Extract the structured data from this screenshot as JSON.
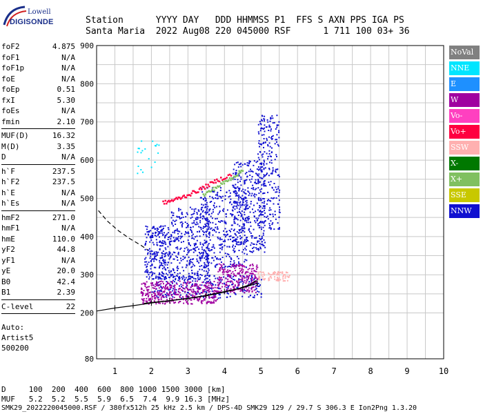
{
  "logo": {
    "top": "Lowell",
    "main": "DIGISONDE"
  },
  "header": {
    "line1": "Station      YYYY DAY   DDD HHMMSS P1  FFS S AXN PPS IGA PS",
    "line2": "Santa Maria  2022 Aug08 220 045000 RSF      1 711 100 03+ 36"
  },
  "params": {
    "group1": [
      {
        "k": "foF2",
        "v": "4.875"
      },
      {
        "k": "foF1",
        "v": "N/A"
      },
      {
        "k": "foF1p",
        "v": "N/A"
      },
      {
        "k": "foE",
        "v": "N/A"
      },
      {
        "k": "foEp",
        "v": "0.51"
      },
      {
        "k": "fxI",
        "v": "5.30"
      },
      {
        "k": "foEs",
        "v": "N/A"
      },
      {
        "k": "fmin",
        "v": "2.10"
      }
    ],
    "group2": [
      {
        "k": "MUF(D)",
        "v": "16.32"
      },
      {
        "k": "M(D)",
        "v": "3.35"
      },
      {
        "k": "D",
        "v": "N/A"
      }
    ],
    "group3": [
      {
        "k": "h`F",
        "v": "237.5"
      },
      {
        "k": "h`F2",
        "v": "237.5"
      },
      {
        "k": "h`E",
        "v": "N/A"
      },
      {
        "k": "h`Es",
        "v": "N/A"
      }
    ],
    "group4": [
      {
        "k": "hmF2",
        "v": "271.0"
      },
      {
        "k": "hmF1",
        "v": "N/A"
      },
      {
        "k": "hmE",
        "v": "110.0"
      },
      {
        "k": "yF2",
        "v": "44.8"
      },
      {
        "k": "yF1",
        "v": "N/A"
      },
      {
        "k": "yE",
        "v": "20.0"
      },
      {
        "k": "B0",
        "v": "42.4"
      },
      {
        "k": "B1",
        "v": "2.39"
      }
    ],
    "group5": [
      {
        "k": "C-level",
        "v": "22"
      }
    ],
    "footer": [
      "Auto:",
      "Artist5",
      "500200"
    ]
  },
  "legend": [
    {
      "label": "NoVal",
      "color": "#808080"
    },
    {
      "label": "NNE",
      "color": "#00e5ff"
    },
    {
      "label": "E",
      "color": "#1e90ff"
    },
    {
      "label": "W",
      "color": "#a000a0"
    },
    {
      "label": "Vo-",
      "color": "#ff40c0"
    },
    {
      "label": "Vo+",
      "color": "#ff0040"
    },
    {
      "label": "SSW",
      "color": "#ffb0b0"
    },
    {
      "label": "X-",
      "color": "#007800"
    },
    {
      "label": "X+",
      "color": "#80c060"
    },
    {
      "label": "SSE",
      "color": "#c8c800"
    },
    {
      "label": "NNW",
      "color": "#1010d0"
    }
  ],
  "bottom": {
    "line1": "D     100  200  400  600  800 1000 1500 3000 [km]",
    "line2": "MUF   5.2  5.2  5.5  5.9  6.5  7.4  9.9 16.3 [MHz]",
    "line3": "SMK29_2022220045000.RSF / 380fx512h 25 kHz 2.5 km / DPS-4D SMK29 129 / 29.7 S 306.3 E Ion2Png 1.3.20"
  },
  "chart_data": {
    "type": "scatter",
    "title": "",
    "xlabel": "",
    "ylabel": "",
    "xlim": [
      0.5,
      10
    ],
    "ylim": [
      80,
      900
    ],
    "xticks": [
      1,
      2,
      3,
      4,
      5,
      6,
      7,
      8,
      9,
      10
    ],
    "yticks": [
      80,
      200,
      300,
      400,
      500,
      600,
      700,
      800,
      900
    ],
    "grid": true,
    "legend_position": "right",
    "series": [
      {
        "name": "NNW",
        "kind": "clusters",
        "clusters": [
          {
            "x0": 1.8,
            "x1": 2.5,
            "y0": 290,
            "y1": 430,
            "n": 260
          },
          {
            "x0": 2.5,
            "x1": 3.6,
            "y0": 290,
            "y1": 480,
            "n": 360
          },
          {
            "x0": 3.3,
            "x1": 4.6,
            "y0": 320,
            "y1": 530,
            "n": 380
          },
          {
            "x0": 4.2,
            "x1": 5.1,
            "y0": 360,
            "y1": 600,
            "n": 340
          },
          {
            "x0": 4.9,
            "x1": 5.5,
            "y0": 420,
            "y1": 720,
            "n": 240
          },
          {
            "x0": 2.0,
            "x1": 5.0,
            "y0": 240,
            "y1": 300,
            "n": 300
          }
        ]
      },
      {
        "name": "W",
        "kind": "clusters",
        "clusters": [
          {
            "x0": 1.7,
            "x1": 3.8,
            "y0": 225,
            "y1": 285,
            "n": 380
          },
          {
            "x0": 3.8,
            "x1": 4.9,
            "y0": 255,
            "y1": 330,
            "n": 240
          }
        ]
      },
      {
        "name": "Vo+",
        "kind": "curve",
        "points": [
          [
            2.3,
            490
          ],
          [
            2.6,
            498
          ],
          [
            2.9,
            508
          ],
          [
            3.2,
            520
          ],
          [
            3.5,
            535
          ],
          [
            3.8,
            550
          ],
          [
            4.2,
            565
          ]
        ]
      },
      {
        "name": "X+",
        "kind": "curve",
        "points": [
          [
            3.4,
            510
          ],
          [
            3.7,
            528
          ],
          [
            4.0,
            545
          ],
          [
            4.3,
            563
          ],
          [
            4.5,
            578
          ]
        ]
      },
      {
        "name": "SSW",
        "kind": "clusters",
        "clusters": [
          {
            "x0": 4.9,
            "x1": 5.8,
            "y0": 285,
            "y1": 310,
            "n": 80
          }
        ]
      },
      {
        "name": "NNE",
        "kind": "clusters",
        "clusters": [
          {
            "x0": 1.6,
            "x1": 2.2,
            "y0": 560,
            "y1": 660,
            "n": 20
          }
        ]
      }
    ],
    "profile_curve": [
      [
        1.8,
        225
      ],
      [
        2.5,
        232
      ],
      [
        3.0,
        238
      ],
      [
        3.5,
        245
      ],
      [
        4.0,
        255
      ],
      [
        4.4,
        264
      ],
      [
        4.7,
        274
      ],
      [
        4.875,
        285
      ]
    ],
    "trace_dashed_lower": [
      [
        0.5,
        205
      ],
      [
        1.0,
        213
      ],
      [
        1.5,
        219
      ],
      [
        2.0,
        226
      ],
      [
        2.5,
        232
      ],
      [
        3.0,
        238
      ],
      [
        3.5,
        246
      ],
      [
        4.0,
        256
      ],
      [
        4.5,
        266
      ],
      [
        4.9,
        278
      ]
    ],
    "trace_dashed_upper": [
      [
        0.55,
        468
      ],
      [
        0.8,
        440
      ],
      [
        1.1,
        415
      ],
      [
        1.4,
        395
      ],
      [
        1.7,
        378
      ],
      [
        1.9,
        365
      ]
    ]
  }
}
